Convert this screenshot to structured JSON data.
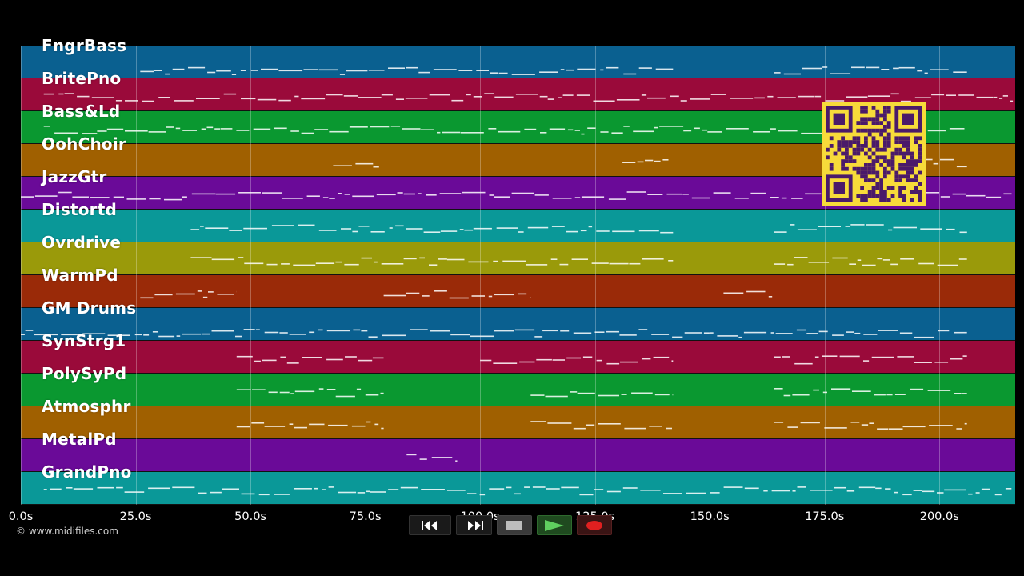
{
  "tracks": [
    {
      "label": "FngrBass",
      "color": "#0a6090"
    },
    {
      "label": "BritePno",
      "color": "#9a0a3a"
    },
    {
      "label": "Bass&Ld",
      "color": "#0a9830"
    },
    {
      "label": "OohChoir",
      "color": "#a06000"
    },
    {
      "label": "JazzGtr",
      "color": "#6a0a98"
    },
    {
      "label": "Distortd",
      "color": "#0a9898"
    },
    {
      "label": "Ovrdrive",
      "color": "#9a9a0a"
    },
    {
      "label": "WarmPd",
      "color": "#9a2a08"
    },
    {
      "label": "GM Drums",
      "color": "#0a6090"
    },
    {
      "label": "SynStrg1",
      "color": "#9a0a3a"
    },
    {
      "label": "PolySyPd",
      "color": "#0a9830"
    },
    {
      "label": "Atmosphr",
      "color": "#a06000"
    },
    {
      "label": "MetalPd",
      "color": "#6a0a98"
    },
    {
      "label": "GrandPno",
      "color": "#0a9898"
    }
  ],
  "time_axis": {
    "ticks": [
      "0.0s",
      "25.0s",
      "50.0s",
      "75.0s",
      "100.0s",
      "125.0s",
      "150.0s",
      "175.0s",
      "200.0s"
    ],
    "tick_values": [
      0,
      25,
      50,
      75,
      100,
      125,
      150,
      175,
      200
    ],
    "range_seconds": [
      0,
      216.5
    ]
  },
  "copyright": "© www.midifiles.com",
  "transport": {
    "rewind_icon": "rewind-icon",
    "forward_icon": "fast-forward-icon",
    "stop_icon": "stop-icon",
    "play_icon": "play-icon",
    "record_icon": "record-icon"
  },
  "qr_code": {
    "color": "#f7db3a",
    "module_color": "#4a1a6a"
  }
}
